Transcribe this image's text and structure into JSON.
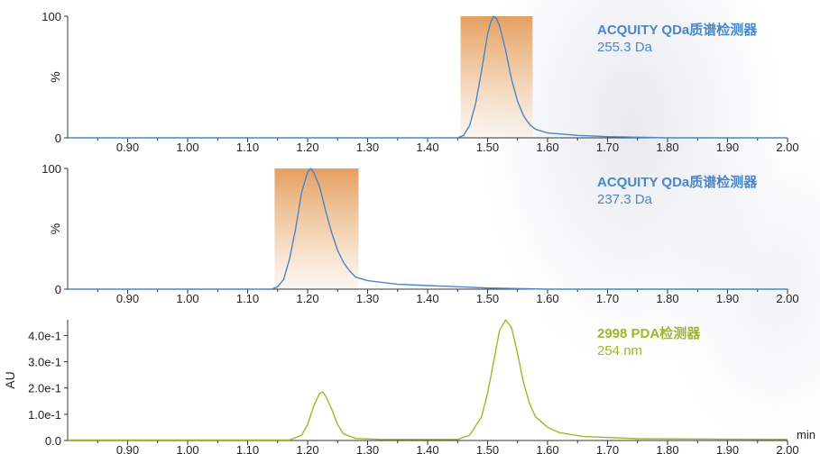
{
  "chart_data": [
    {
      "type": "line",
      "detector": "ACQUITY QDa质谱检测器",
      "detail": "255.3 Da",
      "ylabel": "%",
      "yticks": [
        "0",
        "100"
      ],
      "ylim": [
        0,
        100
      ],
      "xlim": [
        0.8,
        2.0
      ],
      "xticks": [
        "0.90",
        "1.00",
        "1.10",
        "1.20",
        "1.30",
        "1.40",
        "1.50",
        "1.60",
        "1.70",
        "1.80",
        "1.90",
        "2.00"
      ],
      "highlight": {
        "x0": 1.455,
        "x1": 1.575
      },
      "series": [
        {
          "color": "#4a86c8",
          "points": [
            [
              0.8,
              0
            ],
            [
              1.45,
              0
            ],
            [
              1.46,
              2
            ],
            [
              1.47,
              10
            ],
            [
              1.48,
              28
            ],
            [
              1.49,
              55
            ],
            [
              1.5,
              85
            ],
            [
              1.505,
              95
            ],
            [
              1.51,
              100
            ],
            [
              1.515,
              98
            ],
            [
              1.52,
              92
            ],
            [
              1.53,
              72
            ],
            [
              1.54,
              48
            ],
            [
              1.55,
              30
            ],
            [
              1.56,
              18
            ],
            [
              1.57,
              11
            ],
            [
              1.58,
              7
            ],
            [
              1.6,
              4
            ],
            [
              1.65,
              2
            ],
            [
              1.7,
              1
            ],
            [
              1.8,
              0
            ],
            [
              2.0,
              0
            ]
          ]
        }
      ]
    },
    {
      "type": "line",
      "detector": "ACQUITY QDa质谱检测器",
      "detail": "237.3 Da",
      "ylabel": "%",
      "yticks": [
        "0",
        "100"
      ],
      "ylim": [
        0,
        100
      ],
      "xlim": [
        0.8,
        2.0
      ],
      "xticks": [
        "0.90",
        "1.00",
        "1.10",
        "1.20",
        "1.30",
        "1.40",
        "1.50",
        "1.60",
        "1.70",
        "1.80",
        "1.90",
        "2.00"
      ],
      "highlight": {
        "x0": 1.145,
        "x1": 1.285
      },
      "series": [
        {
          "color": "#4a86c8",
          "points": [
            [
              0.8,
              0
            ],
            [
              1.14,
              0
            ],
            [
              1.15,
              2
            ],
            [
              1.16,
              8
            ],
            [
              1.17,
              25
            ],
            [
              1.18,
              50
            ],
            [
              1.19,
              80
            ],
            [
              1.2,
              97
            ],
            [
              1.205,
              100
            ],
            [
              1.21,
              97
            ],
            [
              1.22,
              85
            ],
            [
              1.23,
              65
            ],
            [
              1.24,
              47
            ],
            [
              1.25,
              32
            ],
            [
              1.26,
              22
            ],
            [
              1.27,
              15
            ],
            [
              1.28,
              10
            ],
            [
              1.3,
              7
            ],
            [
              1.35,
              4
            ],
            [
              1.4,
              3
            ],
            [
              1.45,
              2
            ],
            [
              1.5,
              1
            ],
            [
              1.6,
              0
            ],
            [
              2.0,
              0
            ]
          ]
        }
      ]
    },
    {
      "type": "line",
      "detector": "2998 PDA检测器",
      "detail": "254 nm",
      "ylabel": "AU",
      "yticks": [
        "0.0",
        "1.0e-1",
        "2.0e-1",
        "3.0e-1",
        "4.0e-1"
      ],
      "ylim": [
        0,
        0.46
      ],
      "xlim": [
        0.8,
        2.0
      ],
      "xticks": [
        "0.90",
        "1.00",
        "1.10",
        "1.20",
        "1.30",
        "1.40",
        "1.50",
        "1.60",
        "1.70",
        "1.80",
        "1.90",
        "2.00"
      ],
      "xunit": "min",
      "series": [
        {
          "color": "#a3b52a",
          "points": [
            [
              0.8,
              0.002
            ],
            [
              1.17,
              0.002
            ],
            [
              1.19,
              0.02
            ],
            [
              1.2,
              0.06
            ],
            [
              1.21,
              0.13
            ],
            [
              1.22,
              0.18
            ],
            [
              1.225,
              0.185
            ],
            [
              1.23,
              0.17
            ],
            [
              1.24,
              0.12
            ],
            [
              1.25,
              0.06
            ],
            [
              1.26,
              0.025
            ],
            [
              1.28,
              0.008
            ],
            [
              1.32,
              0.004
            ],
            [
              1.45,
              0.004
            ],
            [
              1.47,
              0.02
            ],
            [
              1.49,
              0.09
            ],
            [
              1.5,
              0.18
            ],
            [
              1.51,
              0.3
            ],
            [
              1.52,
              0.42
            ],
            [
              1.53,
              0.46
            ],
            [
              1.54,
              0.43
            ],
            [
              1.55,
              0.33
            ],
            [
              1.56,
              0.22
            ],
            [
              1.57,
              0.14
            ],
            [
              1.58,
              0.09
            ],
            [
              1.6,
              0.05
            ],
            [
              1.62,
              0.03
            ],
            [
              1.66,
              0.015
            ],
            [
              1.75,
              0.007
            ],
            [
              2.0,
              0.004
            ]
          ]
        }
      ]
    }
  ]
}
